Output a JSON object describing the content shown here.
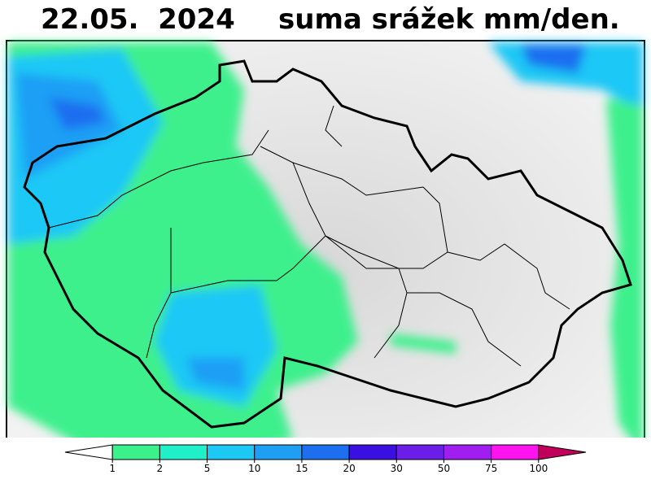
{
  "header": {
    "date": "22.05.  2024",
    "title": "suma srážek mm/den."
  },
  "legend": {
    "labels": [
      1,
      2,
      5,
      10,
      15,
      20,
      30,
      50,
      75,
      100
    ],
    "colors": [
      "#ffffff",
      "#3cf08c",
      "#1ff0c8",
      "#1ec8f5",
      "#1e9ff5",
      "#1e6ef0",
      "#3a10e0",
      "#6a1ee8",
      "#a01ef0",
      "#ff14f0",
      "#c0005a"
    ]
  }
}
